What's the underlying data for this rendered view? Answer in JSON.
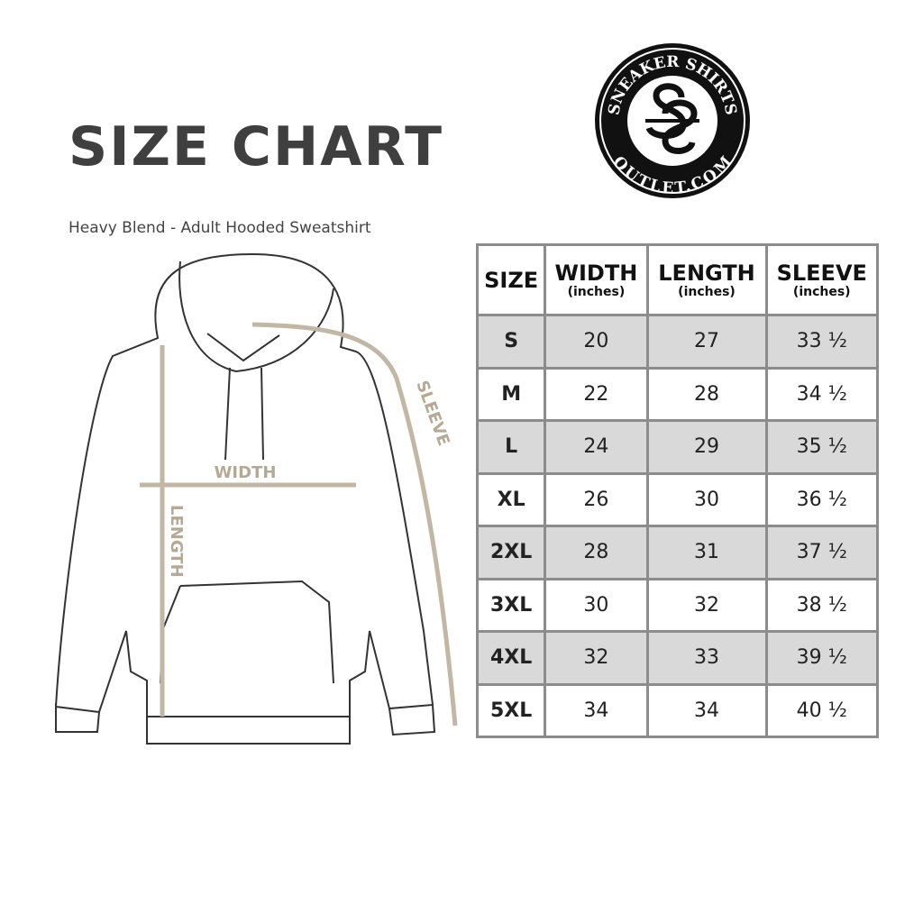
{
  "title": "SIZE CHART",
  "subtitle": "Heavy Blend - Adult Hooded Sweatshirt",
  "logo": {
    "top_text": "SNEAKER SHIRTS",
    "bottom_text": "OUTLET.COM",
    "monogram": "SS"
  },
  "diagram": {
    "width_label": "WIDTH",
    "length_label": "LENGTH",
    "sleeve_label": "SLEEVE",
    "arrow_color": "#c2b7a5"
  },
  "table": {
    "headers": [
      {
        "label": "SIZE",
        "unit": ""
      },
      {
        "label": "WIDTH",
        "unit": "(inches)"
      },
      {
        "label": "LENGTH",
        "unit": "(inches)"
      },
      {
        "label": "SLEEVE",
        "unit": "(inches)"
      }
    ],
    "rows": [
      [
        "S",
        "20",
        "27",
        "33 ½"
      ],
      [
        "M",
        "22",
        "28",
        "34 ½"
      ],
      [
        "L",
        "24",
        "29",
        "35 ½"
      ],
      [
        "XL",
        "26",
        "30",
        "36 ½"
      ],
      [
        "2XL",
        "28",
        "31",
        "37 ½"
      ],
      [
        "3XL",
        "30",
        "32",
        "38 ½"
      ],
      [
        "4XL",
        "32",
        "33",
        "39 ½"
      ],
      [
        "5XL",
        "34",
        "34",
        "40 ½"
      ]
    ]
  }
}
